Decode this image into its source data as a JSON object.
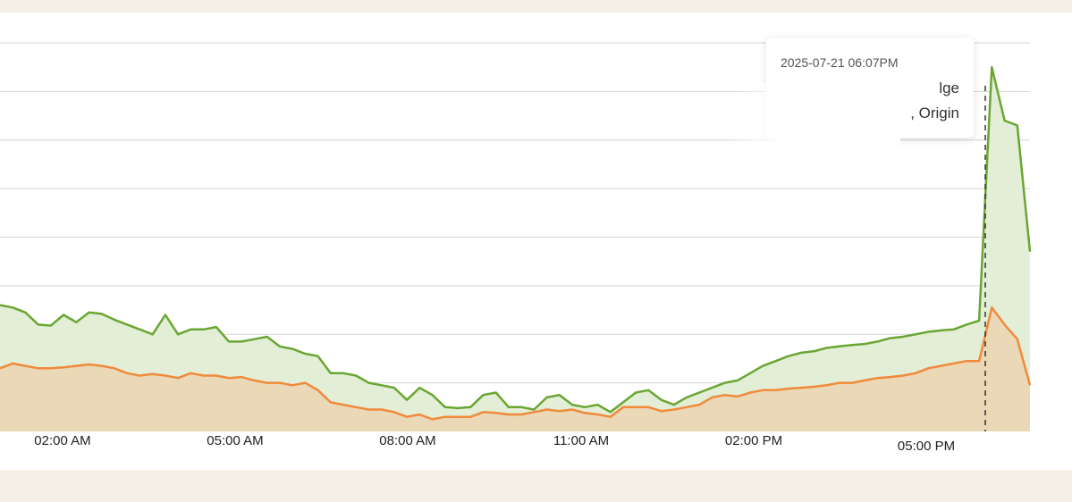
{
  "chart_data": {
    "type": "area",
    "x_tick_labels": [
      "02:00 AM",
      "05:00 AM",
      "08:00 AM",
      "11:00 AM",
      "02:00 PM",
      "05:00 PM"
    ],
    "ylim": [
      0,
      8
    ],
    "grid": true,
    "series": [
      {
        "color": "#6aa632",
        "fill": "#e3eed6",
        "values": [
          2.6,
          2.55,
          2.45,
          2.2,
          2.18,
          2.4,
          2.25,
          2.45,
          2.42,
          2.3,
          2.2,
          2.1,
          2.0,
          2.4,
          2.0,
          2.1,
          2.1,
          2.15,
          1.85,
          1.85,
          1.9,
          1.95,
          1.75,
          1.7,
          1.6,
          1.55,
          1.2,
          1.2,
          1.15,
          1.0,
          0.95,
          0.9,
          0.65,
          0.9,
          0.75,
          0.5,
          0.48,
          0.5,
          0.75,
          0.8,
          0.5,
          0.5,
          0.45,
          0.7,
          0.75,
          0.55,
          0.5,
          0.55,
          0.4,
          0.6,
          0.8,
          0.85,
          0.65,
          0.55,
          0.7,
          0.8,
          0.9,
          1.0,
          1.05,
          1.2,
          1.35,
          1.45,
          1.55,
          1.62,
          1.65,
          1.72,
          1.75,
          1.78,
          1.8,
          1.85,
          1.92,
          1.95,
          2.0,
          2.05,
          2.08,
          2.1,
          2.2,
          2.28,
          7.5,
          6.4,
          6.3,
          3.7
        ]
      },
      {
        "color": "#f08a3b",
        "fill": "#ead8b6",
        "values": [
          1.3,
          1.4,
          1.35,
          1.3,
          1.3,
          1.32,
          1.35,
          1.38,
          1.35,
          1.3,
          1.2,
          1.15,
          1.18,
          1.15,
          1.1,
          1.2,
          1.15,
          1.15,
          1.1,
          1.12,
          1.05,
          1.0,
          1.0,
          0.95,
          1.0,
          0.85,
          0.6,
          0.55,
          0.5,
          0.45,
          0.45,
          0.4,
          0.3,
          0.35,
          0.25,
          0.3,
          0.3,
          0.3,
          0.4,
          0.38,
          0.35,
          0.35,
          0.4,
          0.45,
          0.42,
          0.45,
          0.38,
          0.35,
          0.3,
          0.5,
          0.5,
          0.5,
          0.42,
          0.45,
          0.5,
          0.55,
          0.7,
          0.75,
          0.72,
          0.8,
          0.85,
          0.85,
          0.88,
          0.9,
          0.92,
          0.95,
          1.0,
          1.0,
          1.05,
          1.1,
          1.12,
          1.15,
          1.2,
          1.3,
          1.35,
          1.4,
          1.45,
          1.45,
          2.55,
          2.2,
          1.9,
          0.95
        ]
      }
    ]
  },
  "tooltip": {
    "time": "2025-07-21 06:07PM",
    "row1": "lge",
    "row2": ", Origin"
  }
}
